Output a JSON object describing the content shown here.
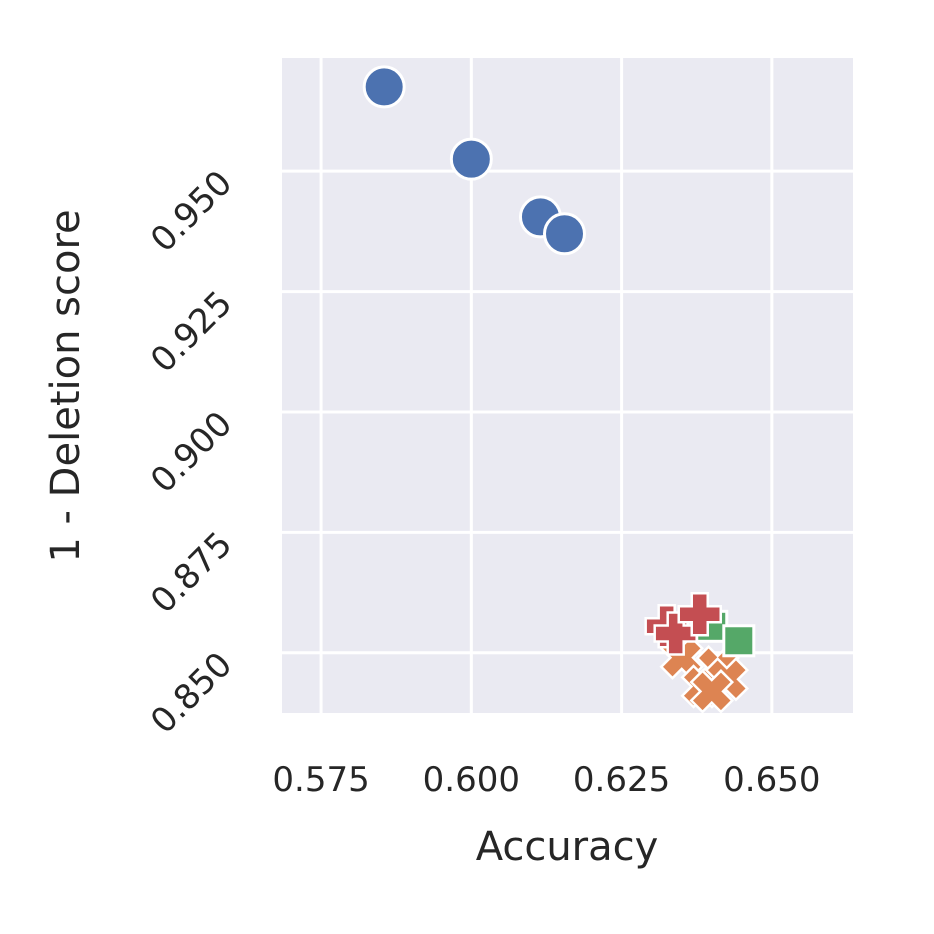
{
  "chart_data": {
    "type": "scatter",
    "title": "",
    "xlabel": "Accuracy",
    "ylabel": "1 - Deletion score",
    "xlim": [
      0.5685,
      0.6635
    ],
    "ylim": [
      0.8375,
      0.9735
    ],
    "xticks": [
      0.575,
      0.6,
      0.625,
      0.65
    ],
    "yticks": [
      0.85,
      0.875,
      0.9,
      0.925,
      0.95
    ],
    "xtick_labels": [
      "0.575",
      "0.600",
      "0.625",
      "0.650"
    ],
    "ytick_labels": [
      "0.850",
      "0.875",
      "0.900",
      "0.925",
      "0.950"
    ],
    "grid": true,
    "legend": "none",
    "background": "#EAEAF2",
    "series": [
      {
        "marker": "circle",
        "color": "#4C72B0",
        "points": [
          {
            "x": 0.5855,
            "y": 0.9675
          },
          {
            "x": 0.6,
            "y": 0.9525
          },
          {
            "x": 0.6115,
            "y": 0.9405
          },
          {
            "x": 0.6155,
            "y": 0.937
          }
        ]
      },
      {
        "marker": "x",
        "color": "#DD8452",
        "points": [
          {
            "x": 0.635,
            "y": 0.849
          },
          {
            "x": 0.6385,
            "y": 0.843
          },
          {
            "x": 0.641,
            "y": 0.847
          },
          {
            "x": 0.6425,
            "y": 0.8445
          },
          {
            "x": 0.64,
            "y": 0.842
          }
        ]
      },
      {
        "marker": "square",
        "color": "#55A868",
        "points": [
          {
            "x": 0.64,
            "y": 0.8555
          },
          {
            "x": 0.6445,
            "y": 0.8525
          }
        ]
      },
      {
        "marker": "plus",
        "color": "#C44E52",
        "points": [
          {
            "x": 0.6325,
            "y": 0.8555
          },
          {
            "x": 0.634,
            "y": 0.854
          },
          {
            "x": 0.638,
            "y": 0.858
          }
        ]
      }
    ]
  }
}
